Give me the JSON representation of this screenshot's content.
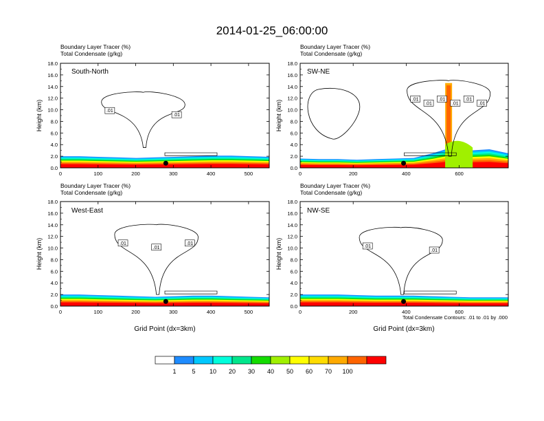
{
  "figure_title": "2014-01-25_06:00:00",
  "chart_data": [
    {
      "type": "heatmap",
      "panel_label": "South-North",
      "subtitle": [
        "Boundary Layer Tracer   (%)",
        "Total Condensate   (g/kg)"
      ],
      "ylabel": "Height (km)",
      "xlabel": "",
      "xlim": [
        0,
        555
      ],
      "ylim": [
        0,
        18
      ],
      "xticks": [
        0,
        100,
        200,
        300,
        400,
        500
      ],
      "yticks": [
        "0.0",
        "2.0",
        "4.0",
        "6.0",
        "8.0",
        "10.0",
        "12.0",
        "14.0",
        "16.0",
        "18.0"
      ],
      "marker_x": 280,
      "tracer_top_km": [
        2.0,
        2.0,
        1.9,
        1.8,
        1.7,
        1.8,
        1.9,
        2.0,
        2.1,
        2.1,
        2.0,
        1.9
      ],
      "contour_labels": [
        ".01",
        ".01"
      ],
      "plume": {
        "kind": "anvil",
        "x_center": 220,
        "base_km": 3.5,
        "top_km": 13.0
      },
      "secondary_plume": null
    },
    {
      "type": "heatmap",
      "panel_label": "SW-NE",
      "subtitle": [
        "Boundary Layer Tracer   (%)",
        "Total Condensate   (g/kg)"
      ],
      "ylabel": "Height (km)",
      "xlabel": "",
      "xlim": [
        0,
        785
      ],
      "ylim": [
        0,
        18
      ],
      "xticks": [
        0,
        200,
        400,
        600
      ],
      "yticks": [
        "0.0",
        "2.0",
        "4.0",
        "6.0",
        "8.0",
        "10.0",
        "12.0",
        "14.0",
        "16.0",
        "18.0"
      ],
      "marker_x": 390,
      "tracer_top_km": [
        1.6,
        1.5,
        1.5,
        1.4,
        1.5,
        1.6,
        1.7,
        2.5,
        3.5,
        3.0,
        3.2,
        2.5
      ],
      "contour_labels": [
        ".01",
        ".01",
        ".01",
        ".01",
        ".01",
        ".01"
      ],
      "plume": {
        "kind": "anvil",
        "x_center": 560,
        "base_km": 2.0,
        "top_km": 15.0
      },
      "secondary_plume": {
        "x_center": 120,
        "base_km": 5.0,
        "top_km": 13.5
      }
    },
    {
      "type": "heatmap",
      "panel_label": "West-East",
      "subtitle": [
        "Boundary Layer Tracer   (%)",
        "Total Condensate   (g/kg)"
      ],
      "ylabel": "Height (km)",
      "xlabel": "Grid Point (dx=3km)",
      "xlim": [
        0,
        555
      ],
      "ylim": [
        0,
        18
      ],
      "xticks": [
        0,
        100,
        200,
        300,
        400,
        500
      ],
      "yticks": [
        "0.0",
        "2.0",
        "4.0",
        "6.0",
        "8.0",
        "10.0",
        "12.0",
        "14.0",
        "16.0",
        "18.0"
      ],
      "marker_x": 280,
      "tracer_top_km": [
        2.0,
        2.0,
        1.9,
        1.8,
        1.7,
        1.6,
        1.7,
        1.8,
        1.8,
        1.7,
        1.6,
        1.5
      ],
      "contour_labels": [
        ".01",
        ".01",
        ".01"
      ],
      "plume": {
        "kind": "anvil",
        "x_center": 255,
        "base_km": 2.0,
        "top_km": 14.0
      },
      "secondary_plume": null
    },
    {
      "type": "heatmap",
      "panel_label": "NW-SE",
      "subtitle": [
        "Boundary Layer Tracer   (%)",
        "Total Condensate   (g/kg)"
      ],
      "ylabel": "Height (km)",
      "xlabel": "Grid Point (dx=3km)",
      "xlim": [
        0,
        785
      ],
      "ylim": [
        0,
        18
      ],
      "xticks": [
        0,
        200,
        400,
        600
      ],
      "yticks": [
        "0.0",
        "2.0",
        "4.0",
        "6.0",
        "8.0",
        "10.0",
        "12.0",
        "14.0",
        "16.0",
        "18.0"
      ],
      "marker_x": 390,
      "tracer_top_km": [
        2.0,
        2.0,
        2.0,
        1.9,
        1.8,
        1.8,
        1.8,
        1.7,
        1.6,
        1.5,
        1.5,
        1.5
      ],
      "contour_labels": [
        ".01",
        ".01"
      ],
      "plume": {
        "kind": "anvil",
        "x_center": 380,
        "base_km": 2.0,
        "top_km": 13.5
      },
      "secondary_plume": null
    }
  ],
  "contour_note": "Total Condensate Contours: .01 to .01 by .000",
  "colorbar": {
    "labels": [
      "1",
      "5",
      "10",
      "20",
      "30",
      "40",
      "50",
      "60",
      "70",
      "100"
    ],
    "colors": [
      "#ffffff",
      "#1e8cff",
      "#00c8ff",
      "#00ffdc",
      "#00e68c",
      "#14dc00",
      "#a0f000",
      "#ffff00",
      "#ffdc00",
      "#ffaa00",
      "#ff6400",
      "#ff0000"
    ]
  }
}
